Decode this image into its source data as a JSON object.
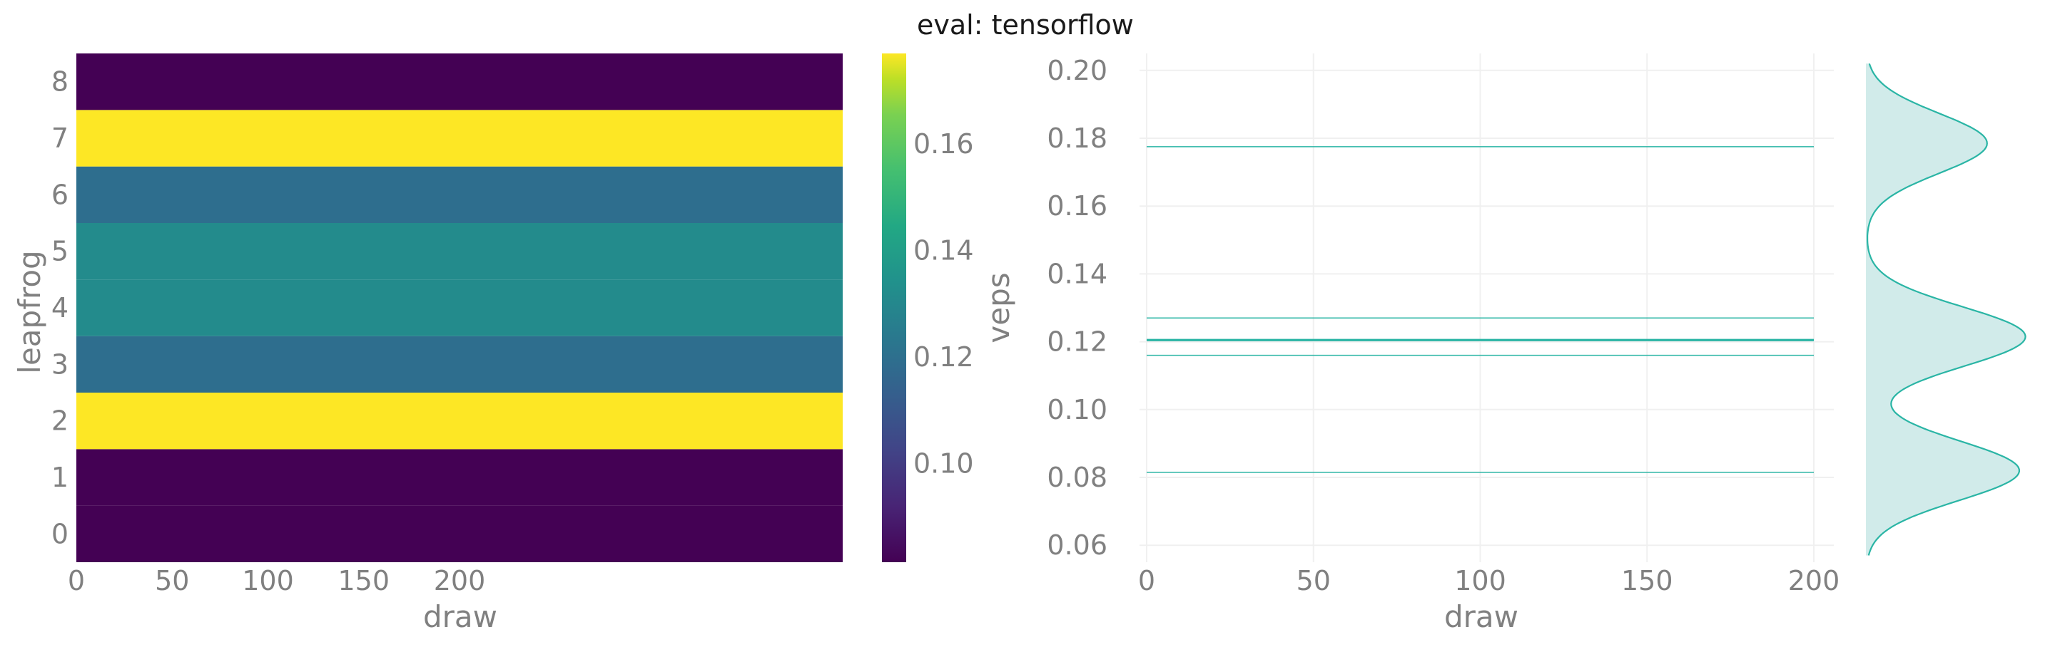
{
  "title": "eval: tensorflow",
  "chart_data": [
    {
      "type": "heatmap",
      "xlabel": "draw",
      "ylabel": "leapfrog",
      "x_ticks": [
        "0",
        "50",
        "100",
        "150",
        "200"
      ],
      "y_ticks": [
        "0",
        "1",
        "2",
        "3",
        "4",
        "5",
        "6",
        "7",
        "8"
      ],
      "xlim": [
        0,
        400
      ],
      "ylim": [
        -0.5,
        8.5
      ],
      "colormap": "viridis",
      "colorbar": {
        "label": "veps",
        "range": [
          0.0815,
          0.177
        ],
        "ticks": [
          "0.10",
          "0.12",
          "0.14",
          "0.16"
        ],
        "tick_values": [
          0.1,
          0.12,
          0.14,
          0.16
        ]
      },
      "rows": [
        {
          "leapfrog": 0,
          "veps": 0.0815
        },
        {
          "leapfrog": 1,
          "veps": 0.0815
        },
        {
          "leapfrog": 2,
          "veps": 0.177
        },
        {
          "leapfrog": 3,
          "veps": 0.116
        },
        {
          "leapfrog": 4,
          "veps": 0.127
        },
        {
          "leapfrog": 5,
          "veps": 0.127
        },
        {
          "leapfrog": 6,
          "veps": 0.116
        },
        {
          "leapfrog": 7,
          "veps": 0.177
        },
        {
          "leapfrog": 8,
          "veps": 0.0815
        }
      ]
    },
    {
      "type": "line",
      "xlabel": "draw",
      "ylabel": "veps",
      "x_ticks": [
        "0",
        "50",
        "100",
        "150",
        "200"
      ],
      "y_ticks": [
        "0.06",
        "0.08",
        "0.10",
        "0.12",
        "0.14",
        "0.16",
        "0.18",
        "0.20"
      ],
      "xlim": [
        0,
        200
      ],
      "ylim": [
        0.055,
        0.205
      ],
      "grid": true,
      "color": "#2ab5a5",
      "lines": [
        {
          "veps": 0.0815,
          "weight": "thin"
        },
        {
          "veps": 0.116,
          "weight": "thin"
        },
        {
          "veps": 0.1205,
          "weight": "thick"
        },
        {
          "veps": 0.127,
          "weight": "thin"
        },
        {
          "veps": 0.1775,
          "weight": "thin"
        }
      ],
      "density": {
        "orientation": "vertical",
        "color": "#2ab5a5",
        "fill": "#d1ebea",
        "range": [
          0.057,
          0.202
        ],
        "peaks": [
          {
            "veps": 0.082,
            "height": 1.0
          },
          {
            "veps": 0.1215,
            "height": 1.04
          },
          {
            "veps": 0.1785,
            "height": 0.79
          }
        ]
      }
    }
  ]
}
